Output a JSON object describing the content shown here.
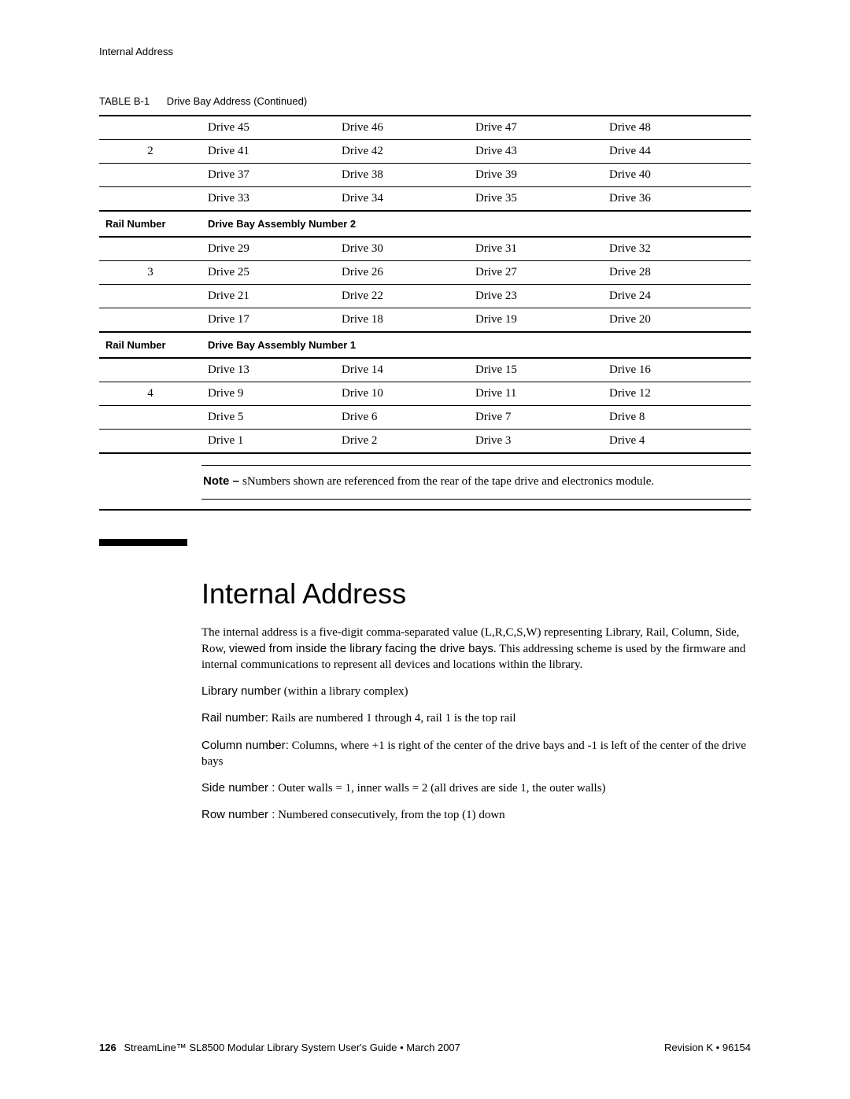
{
  "running_head": "Internal Address",
  "table_caption": {
    "label": "TABLE B-1",
    "title": "Drive Bay Address  (Continued)"
  },
  "table": {
    "block1": {
      "rail": "2",
      "rows": [
        [
          "Drive 45",
          "Drive 46",
          "Drive 47",
          "Drive 48"
        ],
        [
          "Drive 41",
          "Drive 42",
          "Drive 43",
          "Drive 44"
        ],
        [
          "Drive 37",
          "Drive 38",
          "Drive 39",
          "Drive 40"
        ],
        [
          "Drive 33",
          "Drive 34",
          "Drive 35",
          "Drive 36"
        ]
      ]
    },
    "header2": {
      "left": "Rail Number",
      "right": "Drive Bay Assembly Number 2"
    },
    "block2": {
      "rail": "3",
      "rows": [
        [
          "Drive 29",
          "Drive 30",
          "Drive 31",
          "Drive 32"
        ],
        [
          "Drive 25",
          "Drive 26",
          "Drive 27",
          "Drive 28"
        ],
        [
          "Drive 21",
          "Drive 22",
          "Drive 23",
          "Drive 24"
        ],
        [
          "Drive 17",
          "Drive 18",
          "Drive 19",
          "Drive 20"
        ]
      ]
    },
    "header3": {
      "left": "Rail Number",
      "right": "Drive Bay Assembly Number 1"
    },
    "block3": {
      "rail": "4",
      "rows": [
        [
          "Drive 13",
          "Drive 14",
          "Drive 15",
          "Drive 16"
        ],
        [
          "Drive 9",
          "Drive 10",
          "Drive 11",
          "Drive 12"
        ],
        [
          "Drive 5",
          "Drive 6",
          "Drive 7",
          "Drive 8"
        ],
        [
          "Drive 1",
          "Drive 2",
          "Drive 3",
          "Drive 4"
        ]
      ]
    }
  },
  "note": {
    "label": "Note – ",
    "text": "sNumbers shown are referenced from the rear of the tape drive and electronics module."
  },
  "heading": "Internal Address",
  "para1_a": "The internal address is a five-digit comma-separated value (L,R,C,S,W) representing Library, Rail, Column, Side, Row, ",
  "para1_b": "viewed from inside the library facing the drive bays",
  "para1_c": ". This addressing scheme is used by the firmware and internal communications to represent all devices and locations within the library.",
  "para2_a": "Library number",
  "para2_b": "   (within a library complex)",
  "para3_a": "Rail number:",
  "para3_b": "  Rails are numbered 1 through 4, rail 1 is the top rail",
  "para4_a": "Column number:",
  "para4_b": "  Columns, where +1 is right of the center of the drive bays and -1 is left of the center of the drive bays",
  "para5_a": "Side number :",
  "para5_b": " Outer walls = 1, inner walls = 2 (all drives are side 1, the outer walls)",
  "para6_a": "Row number :",
  "para6_b": " Numbered consecutively, from the top (1) down",
  "footer": {
    "page": "126",
    "left": "StreamLine™ SL8500 Modular Library System User's Guide  •  March 2007",
    "right": "Revision K  •  96154"
  }
}
